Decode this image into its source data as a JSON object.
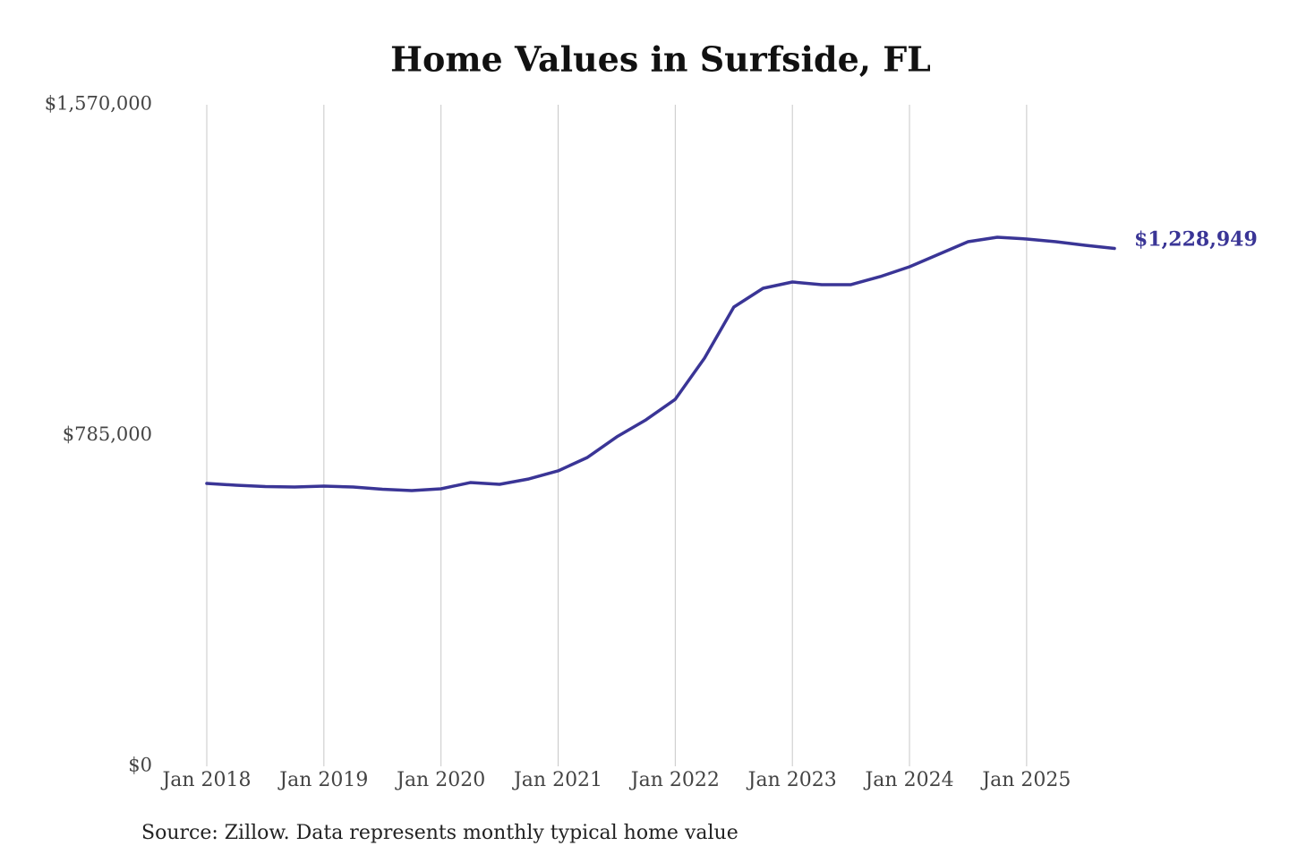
{
  "chart_data": {
    "type": "line",
    "title": "Home Values in Surfside, FL",
    "source": "Source: Zillow. Data represents monthly typical home value",
    "x": [
      2018,
      2018.25,
      2018.5,
      2018.75,
      2019,
      2019.25,
      2019.5,
      2019.75,
      2020,
      2020.25,
      2020.5,
      2020.75,
      2021,
      2021.25,
      2021.5,
      2021.75,
      2022,
      2022.25,
      2022.5,
      2022.75,
      2023,
      2023.25,
      2023.5,
      2023.75,
      2024,
      2024.25,
      2024.5,
      2024.75,
      2025,
      2025.25,
      2025.5,
      2025.75
    ],
    "series": [
      {
        "name": "Home value",
        "color": "#3a3596",
        "values": [
          671300,
          667100,
          663900,
          662800,
          665000,
          662800,
          657500,
          654300,
          658600,
          673400,
          669200,
          682000,
          701100,
          733000,
          781800,
          822200,
          871000,
          968800,
          1089900,
          1134500,
          1149400,
          1143000,
          1143000,
          1162100,
          1185500,
          1215200,
          1245000,
          1255600,
          1251400,
          1245000,
          1236500,
          1228949
        ]
      }
    ],
    "end_label": {
      "value": 1228949,
      "label": "$1,228,949"
    },
    "xlim": [
      2018,
      2025.75
    ],
    "xticks": [
      {
        "value": 2018,
        "label": "Jan 2018"
      },
      {
        "value": 2019,
        "label": "Jan 2019"
      },
      {
        "value": 2020,
        "label": "Jan 2020"
      },
      {
        "value": 2021,
        "label": "Jan 2021"
      },
      {
        "value": 2022,
        "label": "Jan 2022"
      },
      {
        "value": 2023,
        "label": "Jan 2023"
      },
      {
        "value": 2024,
        "label": "Jan 2024"
      },
      {
        "value": 2025,
        "label": "Jan 2025"
      }
    ],
    "ylim": [
      0,
      1570000
    ],
    "yticks": [
      {
        "value": 0,
        "label": "$0"
      },
      {
        "value": 785000,
        "label": "$785,000"
      },
      {
        "value": 1570000,
        "label": "$1,570,000"
      }
    ],
    "grid": "x"
  }
}
